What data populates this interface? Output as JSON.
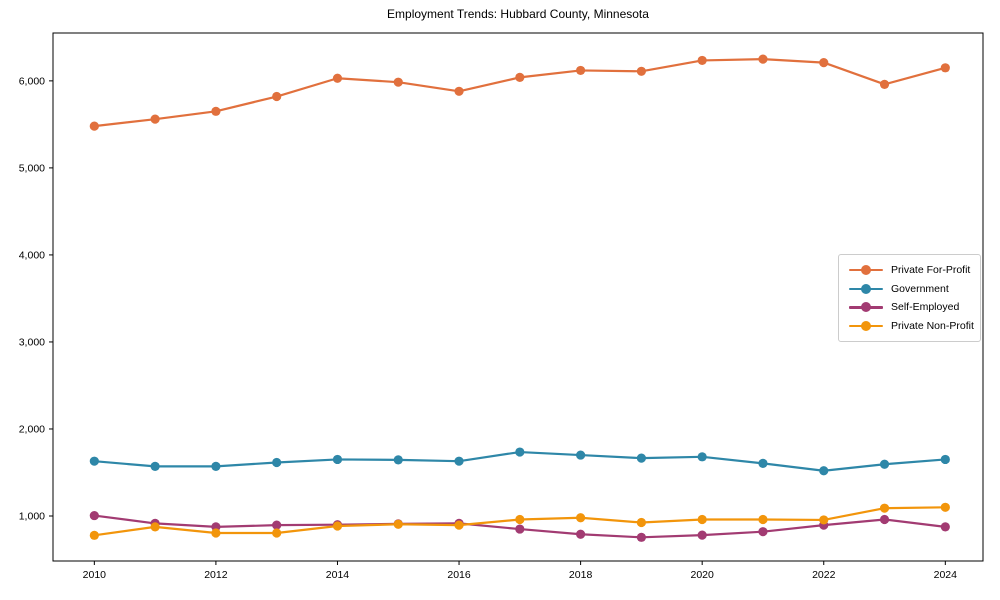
{
  "chart_data": {
    "type": "line",
    "title": "Employment Trends: Hubbard County, Minnesota",
    "xlabel": "",
    "ylabel": "",
    "x": [
      2010,
      2011,
      2012,
      2013,
      2014,
      2015,
      2016,
      2017,
      2018,
      2019,
      2020,
      2021,
      2022,
      2023,
      2024
    ],
    "series": [
      {
        "name": "Private For-Profit",
        "color": "#e1703d",
        "values": [
          5480,
          5560,
          5650,
          5820,
          6030,
          5985,
          5880,
          6040,
          6120,
          6110,
          6235,
          6250,
          6210,
          5960,
          6150
        ]
      },
      {
        "name": "Government",
        "color": "#2e87a8",
        "values": [
          1630,
          1570,
          1570,
          1615,
          1650,
          1645,
          1630,
          1735,
          1700,
          1665,
          1680,
          1605,
          1520,
          1595,
          1650
        ]
      },
      {
        "name": "Self-Employed",
        "color": "#a23b72",
        "values": [
          1005,
          915,
          875,
          895,
          900,
          910,
          915,
          850,
          790,
          755,
          780,
          820,
          895,
          960,
          875
        ]
      },
      {
        "name": "Private Non-Profit",
        "color": "#f2950b",
        "values": [
          778,
          875,
          805,
          805,
          885,
          905,
          895,
          960,
          980,
          925,
          960,
          960,
          955,
          1090,
          1100
        ]
      }
    ],
    "xticks": [
      2010,
      2012,
      2014,
      2016,
      2018,
      2020,
      2022,
      2024
    ],
    "xtick_labels": [
      "2010",
      "2012",
      "2014",
      "2016",
      "2018",
      "2020",
      "2022",
      "2024"
    ],
    "yticks": [
      1000,
      2000,
      3000,
      4000,
      5000,
      6000
    ],
    "ytick_labels": [
      "1,000",
      "2,000",
      "3,000",
      "4,000",
      "5,000",
      "6,000"
    ],
    "xlim": [
      2009.32,
      2024.62
    ],
    "ylim": [
      483,
      6550
    ],
    "grid": false,
    "legend_position": "center right"
  }
}
